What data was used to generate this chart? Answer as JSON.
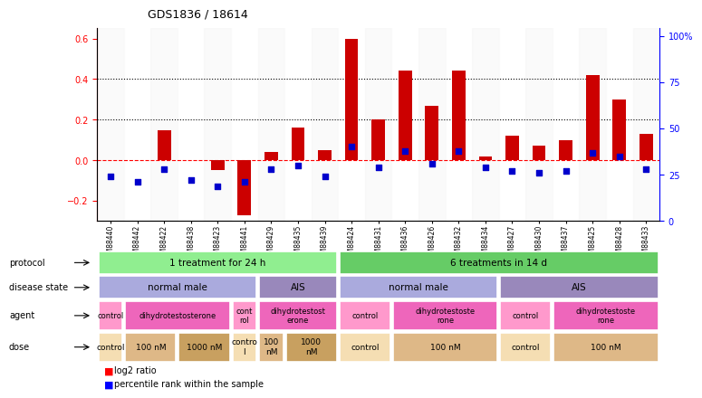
{
  "title": "GDS1836 / 18614",
  "samples": [
    "GSM88440",
    "GSM88442",
    "GSM88422",
    "GSM88438",
    "GSM88423",
    "GSM88441",
    "GSM88429",
    "GSM88435",
    "GSM88439",
    "GSM88424",
    "GSM88431",
    "GSM88436",
    "GSM88426",
    "GSM88432",
    "GSM88434",
    "GSM88427",
    "GSM88430",
    "GSM88437",
    "GSM88425",
    "GSM88428",
    "GSM88433"
  ],
  "log2_ratio": [
    0.0,
    0.0,
    0.15,
    0.0,
    -0.05,
    -0.27,
    0.04,
    0.16,
    0.05,
    0.6,
    0.2,
    0.44,
    0.27,
    0.44,
    0.02,
    0.12,
    0.07,
    0.1,
    0.42,
    0.3,
    0.13
  ],
  "percentile_rank": [
    24,
    21,
    28,
    22,
    19,
    21,
    28,
    30,
    24,
    40,
    29,
    38,
    31,
    38,
    29,
    27,
    26,
    27,
    37,
    35,
    28
  ],
  "protocol_groups": [
    {
      "label": "1 treatment for 24 h",
      "start": 0,
      "end": 9,
      "color": "#90EE90"
    },
    {
      "label": "6 treatments in 14 d",
      "start": 9,
      "end": 21,
      "color": "#66CC66"
    }
  ],
  "disease_state_groups": [
    {
      "label": "normal male",
      "start": 0,
      "end": 6,
      "color": "#AAAADD"
    },
    {
      "label": "AIS",
      "start": 6,
      "end": 9,
      "color": "#9988BB"
    },
    {
      "label": "normal male",
      "start": 9,
      "end": 15,
      "color": "#AAAADD"
    },
    {
      "label": "AIS",
      "start": 15,
      "end": 21,
      "color": "#9988BB"
    }
  ],
  "agent_groups": [
    {
      "label": "control",
      "start": 0,
      "end": 1,
      "color": "#FF99CC"
    },
    {
      "label": "dihydrotestosterone",
      "start": 1,
      "end": 5,
      "color": "#EE66BB"
    },
    {
      "label": "cont\nrol",
      "start": 5,
      "end": 6,
      "color": "#FF99CC"
    },
    {
      "label": "dihydrotestost\nerone",
      "start": 6,
      "end": 9,
      "color": "#EE66BB"
    },
    {
      "label": "control",
      "start": 9,
      "end": 11,
      "color": "#FF99CC"
    },
    {
      "label": "dihydrotestoste\nrone",
      "start": 11,
      "end": 15,
      "color": "#EE66BB"
    },
    {
      "label": "control",
      "start": 15,
      "end": 17,
      "color": "#FF99CC"
    },
    {
      "label": "dihydrotestoste\nrone",
      "start": 17,
      "end": 21,
      "color": "#EE66BB"
    }
  ],
  "dose_groups": [
    {
      "label": "control",
      "start": 0,
      "end": 1,
      "color": "#F5DEB3"
    },
    {
      "label": "100 nM",
      "start": 1,
      "end": 3,
      "color": "#DEB887"
    },
    {
      "label": "1000 nM",
      "start": 3,
      "end": 5,
      "color": "#C8A060"
    },
    {
      "label": "contro\nl",
      "start": 5,
      "end": 6,
      "color": "#F5DEB3"
    },
    {
      "label": "100\nnM",
      "start": 6,
      "end": 7,
      "color": "#DEB887"
    },
    {
      "label": "1000\nnM",
      "start": 7,
      "end": 9,
      "color": "#C8A060"
    },
    {
      "label": "control",
      "start": 9,
      "end": 11,
      "color": "#F5DEB3"
    },
    {
      "label": "100 nM",
      "start": 11,
      "end": 15,
      "color": "#DEB887"
    },
    {
      "label": "control",
      "start": 15,
      "end": 17,
      "color": "#F5DEB3"
    },
    {
      "label": "100 nM",
      "start": 17,
      "end": 21,
      "color": "#DEB887"
    }
  ],
  "bar_color": "#CC0000",
  "dot_color": "#0000CC",
  "ylim_left": [
    -0.3,
    0.65
  ],
  "yticks_left": [
    -0.2,
    0.0,
    0.2,
    0.4,
    0.6
  ],
  "ylim_right": [
    0,
    104
  ],
  "yticks_right": [
    0,
    25,
    50,
    75,
    100
  ],
  "ytick_labels_right": [
    "0",
    "25",
    "50",
    "75",
    "100%"
  ],
  "hline_dashed_red": 0.0,
  "hline_dotted_black1": 0.2,
  "hline_dotted_black2": 0.4,
  "bar_width": 0.5,
  "row_label_names": [
    "protocol",
    "disease state",
    "agent",
    "dose"
  ],
  "legend_labels": [
    "log2 ratio",
    "percentile rank within the sample"
  ]
}
